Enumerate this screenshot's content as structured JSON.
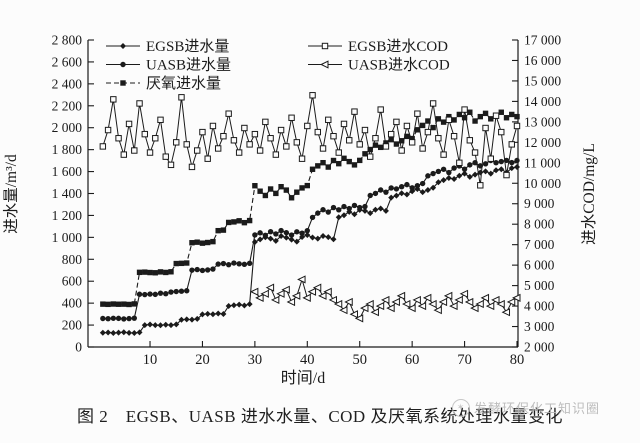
{
  "page": {
    "background": "#fcfcfc",
    "ink": "#1b1b1b"
  },
  "caption": {
    "text": "图 2　EGSB、UASB 进水水量、COD 及厌氧系统处理水量变化"
  },
  "watermark": {
    "text": "发酵环保化工知识圈",
    "icon": "circle-logo"
  },
  "chart_data": {
    "type": "line",
    "x_axis": {
      "label": "时间/d",
      "range": [
        0,
        80
      ],
      "ticks": [
        10,
        20,
        30,
        40,
        50,
        60,
        70,
        80
      ]
    },
    "y_left": {
      "label": "进水量/m³/d",
      "range": [
        0,
        2800
      ],
      "ticks": [
        0,
        200,
        400,
        600,
        800,
        1000,
        1200,
        1400,
        1600,
        1800,
        2000,
        2200,
        2400,
        2600,
        2800
      ]
    },
    "y_right": {
      "label": "进水COD/mg/L",
      "range": [
        2000,
        17000
      ],
      "ticks": [
        2000,
        3000,
        4000,
        5000,
        6000,
        7000,
        8000,
        9000,
        10000,
        11000,
        12000,
        13000,
        14000,
        15000,
        16000,
        17000
      ]
    },
    "legend_left": [
      {
        "label": "EGSB进水量",
        "marker": "diamond-filled",
        "line": "solid"
      },
      {
        "label": "UASB进水量",
        "marker": "circle-filled",
        "line": "solid"
      },
      {
        "label": "厌氧进水量",
        "marker": "square-filled",
        "line": "dashed"
      }
    ],
    "legend_right": [
      {
        "label": "EGSB进水COD",
        "marker": "square-open",
        "line": "solid"
      },
      {
        "label": "UASB进水COD",
        "marker": "triangle-left-open",
        "line": "solid"
      }
    ],
    "grid": false,
    "series": [
      {
        "name": "EGSB进水量",
        "axis": "left",
        "marker": "diamond-filled",
        "line": "solid",
        "x_start": 1,
        "x_step": 1,
        "y": [
          130,
          132,
          128,
          131,
          135,
          129,
          128,
          133,
          200,
          205,
          199,
          198,
          203,
          200,
          206,
          248,
          252,
          250,
          256,
          297,
          302,
          299,
          306,
          301,
          374,
          381,
          386,
          379,
          391,
          958,
          982,
          1001,
          989,
          968,
          1012,
          998,
          979,
          961,
          1003,
          1021,
          999,
          988,
          1012,
          1002,
          983,
          1183,
          1202,
          1232,
          1211,
          1251,
          1242,
          1221,
          1252,
          1263,
          1241,
          1362,
          1381,
          1402,
          1391,
          1421,
          1441,
          1412,
          1432,
          1452,
          1503,
          1522,
          1541,
          1532,
          1562,
          1581,
          1552,
          1572,
          1591,
          1602,
          1581,
          1612,
          1621,
          1592,
          1631,
          1642
        ]
      },
      {
        "name": "UASB进水量",
        "axis": "left",
        "marker": "circle-filled",
        "line": "solid",
        "x_start": 1,
        "x_step": 1,
        "y": [
          260,
          258,
          262,
          261,
          256,
          259,
          263,
          481,
          478,
          483,
          480,
          491,
          486,
          501,
          506,
          509,
          513,
          701,
          706,
          698,
          703,
          711,
          756,
          761,
          751,
          766,
          759,
          754,
          763,
          1022,
          1041,
          1019,
          1052,
          1031,
          1062,
          1043,
          1021,
          1051,
          1038,
          1061,
          1182,
          1221,
          1252,
          1231,
          1272,
          1251,
          1281,
          1262,
          1291,
          1272,
          1281,
          1382,
          1401,
          1432,
          1412,
          1451,
          1442,
          1462,
          1481,
          1452,
          1471,
          1491,
          1561,
          1582,
          1601,
          1621,
          1591,
          1632,
          1651,
          1622,
          1661,
          1681,
          1652,
          1671,
          1701,
          1681,
          1691,
          1702,
          1682,
          1701
        ]
      },
      {
        "name": "厌氧进水量",
        "axis": "left",
        "marker": "square-filled",
        "line": "dashed",
        "x_start": 1,
        "x_step": 1,
        "y": [
          391,
          389,
          392,
          390,
          391,
          388,
          393,
          681,
          683,
          679,
          677,
          685,
          680,
          686,
          761,
          763,
          766,
          951,
          956,
          947,
          953,
          961,
          1061,
          1066,
          1136,
          1141,
          1151,
          1134,
          1153,
          1471,
          1421,
          1382,
          1441,
          1401,
          1462,
          1431,
          1361,
          1412,
          1451,
          1472,
          1621,
          1652,
          1681,
          1641,
          1701,
          1672,
          1721,
          1691,
          1661,
          1702,
          1762,
          1801,
          1841,
          1821,
          1861,
          1891,
          1851,
          1881,
          1921,
          1901,
          1981,
          2021,
          2061,
          2001,
          2081,
          2051,
          2101,
          2071,
          2121,
          2091,
          2141,
          2061,
          2101,
          2131,
          2081,
          2111,
          2141,
          2091,
          2121,
          2101
        ]
      },
      {
        "name": "EGSB进水COD",
        "axis": "right",
        "marker": "square-open",
        "line": "solid",
        "x_start": 1,
        "x_step": 1,
        "y": [
          11800,
          12600,
          14100,
          12200,
          11400,
          12900,
          11600,
          13900,
          12400,
          11500,
          12200,
          13100,
          11300,
          10900,
          12000,
          14200,
          11900,
          10800,
          11600,
          12500,
          11200,
          12800,
          11700,
          12300,
          13400,
          12100,
          11500,
          12700,
          11900,
          12400,
          11600,
          13000,
          12200,
          11400,
          12600,
          11800,
          13200,
          12000,
          11200,
          12800,
          14300,
          12500,
          11700,
          13100,
          12300,
          11500,
          12900,
          12100,
          13500,
          11900,
          12600,
          11300,
          12200,
          13600,
          11800,
          12400,
          13000,
          11600,
          12800,
          12000,
          13400,
          11700,
          12500,
          13900,
          12200,
          11400,
          13100,
          12300,
          11000,
          13600,
          12100,
          11500,
          9900,
          12700,
          11200,
          13300,
          12500,
          10400,
          11900,
          12800
        ]
      },
      {
        "name": "UASB进水COD",
        "axis": "right",
        "marker": "triangle-left-open",
        "line": "solid",
        "x_start": 30,
        "x_step": 1,
        "y": [
          4700,
          4400,
          4600,
          4900,
          4300,
          4600,
          4800,
          4200,
          4500,
          5300,
          4400,
          4700,
          4900,
          4500,
          4700,
          4300,
          4100,
          3800,
          4200,
          3600,
          3400,
          3900,
          4100,
          3700,
          4000,
          4300,
          3900,
          4200,
          4500,
          4100,
          3900,
          4300,
          4000,
          4400,
          4100,
          3800,
          4200,
          4500,
          4000,
          4300,
          4600,
          4200,
          3900,
          4100,
          4400,
          4000,
          4300,
          4100,
          3700,
          4200,
          4400
        ]
      }
    ]
  }
}
